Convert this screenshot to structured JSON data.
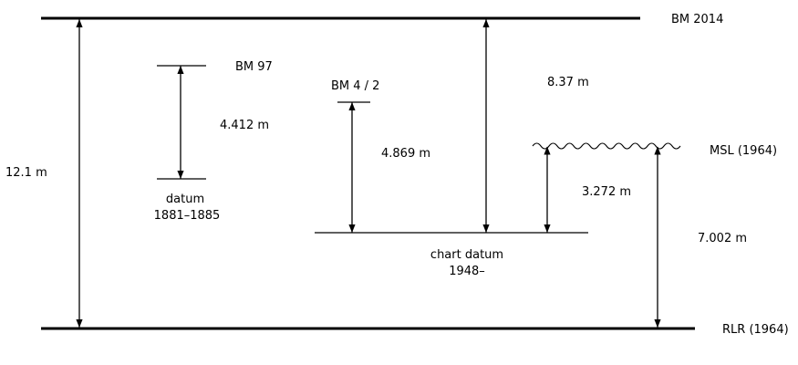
{
  "levels": {
    "bm_2014": "BM 2014",
    "bm_97": "BM 97",
    "bm_4_2": "BM 4 / 2",
    "msl_1964": "MSL (1964)",
    "rlr_1964": "RLR (1964)",
    "datum_1881_line1": "datum",
    "datum_1881_line2": "1881–1885",
    "chart_datum_line1": "chart datum",
    "chart_datum_line2": "1948–"
  },
  "distances": {
    "rlr_to_bm2014": "12.1 m",
    "datum1881_to_bm97": "4.412 m",
    "chartdatum_to_bm42": "4.869 m",
    "chartdatum_to_bm2014": "8.37 m",
    "chartdatum_to_msl": "3.272 m",
    "rlr_to_msl": "7.002 m"
  }
}
